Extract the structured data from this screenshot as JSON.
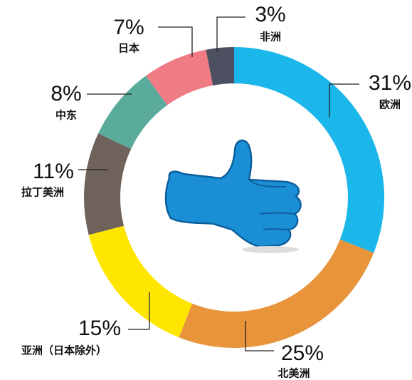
{
  "chart_data": {
    "type": "donut",
    "categories": [
      "欧洲",
      "北美洲",
      "亚洲（日本除外）",
      "拉丁美洲",
      "中东",
      "日本",
      "非洲"
    ],
    "values": [
      31,
      25,
      15,
      11,
      8,
      7,
      3
    ],
    "value_labels": [
      "31%",
      "25%",
      "15%",
      "11%",
      "8%",
      "7%",
      "3%"
    ],
    "colors": [
      "#1bb6ea",
      "#e8943b",
      "#ffe600",
      "#6e625a",
      "#5aab9c",
      "#ef7b84",
      "#4d5060"
    ]
  }
}
